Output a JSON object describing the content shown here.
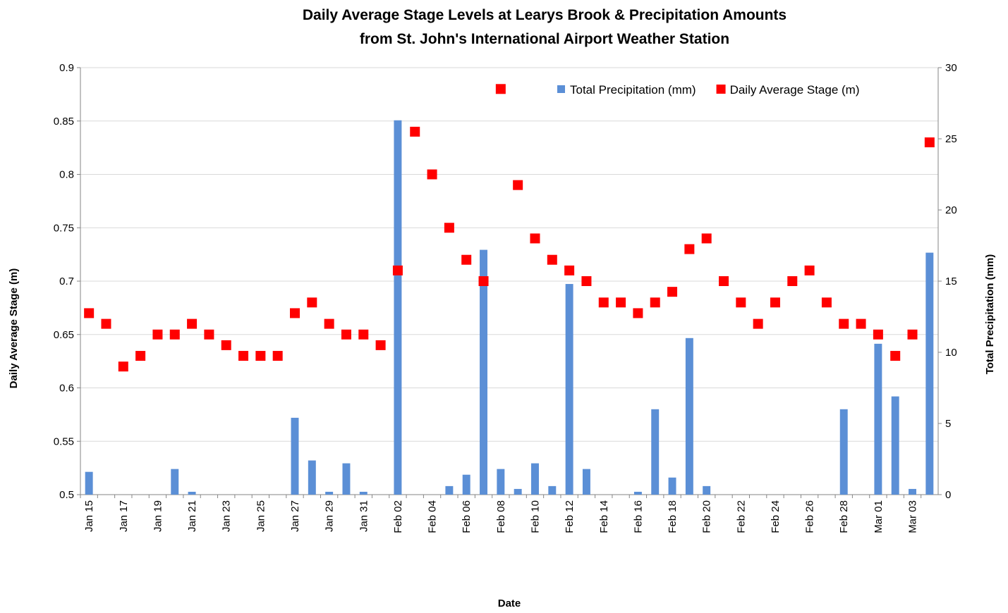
{
  "chart_data": {
    "type": "bar_scatter",
    "title": [
      "Daily Average Stage Levels at Learys Brook & Precipitation Amounts",
      "from St. John's International Airport Weather Station"
    ],
    "xlabel": "Date",
    "ylabel": "Daily Average Stage (m)",
    "y2label": "Total Precipitation (mm)",
    "categories": [
      "Jan 15",
      null,
      "Jan 17",
      null,
      "Jan 19",
      null,
      "Jan 21",
      null,
      "Jan 23",
      null,
      "Jan 25",
      null,
      "Jan 27",
      null,
      "Jan 29",
      null,
      "Jan 31",
      null,
      "Feb 02",
      null,
      "Feb 04",
      null,
      "Feb 06",
      null,
      "Feb 08",
      null,
      "Feb 10",
      null,
      "Feb 12",
      null,
      "Feb 14",
      null,
      "Feb 16",
      null,
      "Feb 18",
      null,
      "Feb 20",
      null,
      "Feb 22",
      null,
      "Feb 24",
      null,
      "Feb 26",
      null,
      "Feb 28",
      null,
      "Mar 01",
      null,
      "Mar 03",
      null
    ],
    "series": [
      {
        "name": "Total Precipitation (mm)",
        "type": "bar",
        "axis": "y2",
        "color": "#5b8fd6",
        "values": [
          1.6,
          0,
          0,
          0,
          0,
          1.8,
          0.2,
          0,
          0,
          0,
          0,
          0,
          5.4,
          2.4,
          0.2,
          2.2,
          0.2,
          0,
          26.3,
          0,
          0,
          0.6,
          1.4,
          17.2,
          1.8,
          0.4,
          2.2,
          0.6,
          14.8,
          1.8,
          0,
          0,
          0.2,
          6.0,
          1.2,
          11.0,
          0.6,
          0,
          0,
          0,
          0,
          0,
          0,
          0,
          6.0,
          0,
          10.6,
          6.9,
          0.4,
          17.0
        ]
      },
      {
        "name": "Daily Average Stage (m)",
        "type": "scatter",
        "color": "#ff0000",
        "values": [
          0.67,
          0.66,
          0.62,
          0.63,
          0.65,
          0.65,
          0.66,
          0.65,
          0.64,
          0.63,
          0.63,
          0.63,
          0.67,
          0.68,
          0.66,
          0.65,
          0.65,
          0.64,
          0.71,
          0.84,
          0.8,
          0.75,
          0.72,
          0.7,
          0.88,
          0.79,
          0.74,
          0.72,
          0.71,
          0.7,
          0.68,
          0.68,
          0.67,
          0.68,
          0.69,
          0.73,
          0.74,
          0.7,
          0.68,
          0.66,
          0.68,
          0.7,
          0.71,
          0.68,
          0.66,
          0.66,
          0.65,
          0.63,
          0.65,
          0.83
        ]
      }
    ],
    "ylim": [
      0.5,
      0.9
    ],
    "yticks": [
      0.5,
      0.55,
      0.6,
      0.65,
      0.7,
      0.75,
      0.8,
      0.85,
      0.9
    ],
    "y2lim": [
      0,
      30
    ],
    "y2ticks": [
      0,
      5,
      10,
      15,
      20,
      25,
      30
    ],
    "grid": true,
    "legend": "top-right"
  }
}
